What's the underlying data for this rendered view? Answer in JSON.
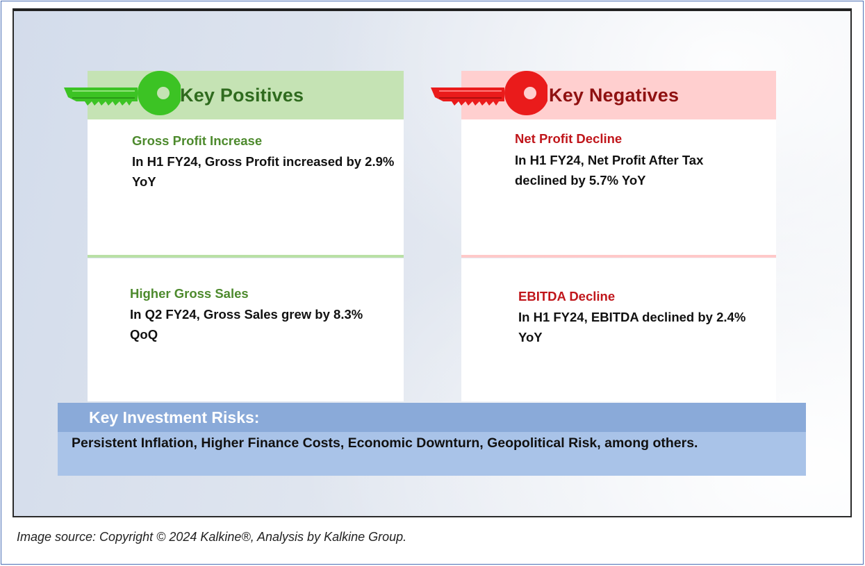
{
  "positives": {
    "header": "Key Positives",
    "icon": "key-icon",
    "color": "#3cc324",
    "items": [
      {
        "title": "Gross Profit Increase",
        "body": "In H1 FY24, Gross Profit increased by 2.9% YoY"
      },
      {
        "title": "Higher Gross Sales",
        "body": "In Q2 FY24, Gross Sales grew by 8.3% QoQ"
      }
    ]
  },
  "negatives": {
    "header": "Key Negatives",
    "icon": "key-icon",
    "color": "#ea1b1b",
    "items": [
      {
        "title": "Net Profit Decline",
        "body": "In H1 FY24, Net Profit After Tax declined by 5.7% YoY"
      },
      {
        "title": "EBITDA Decline",
        "body": "In H1 FY24, EBITDA declined by 2.4% YoY"
      }
    ]
  },
  "risks": {
    "title": "Key Investment Risks:",
    "body": "Persistent Inflation, Higher Finance Costs, Economic Downturn, Geopolitical Risk, among others."
  },
  "caption": "Image source: Copyright © 2024 Kalkine®, Analysis by Kalkine Group."
}
